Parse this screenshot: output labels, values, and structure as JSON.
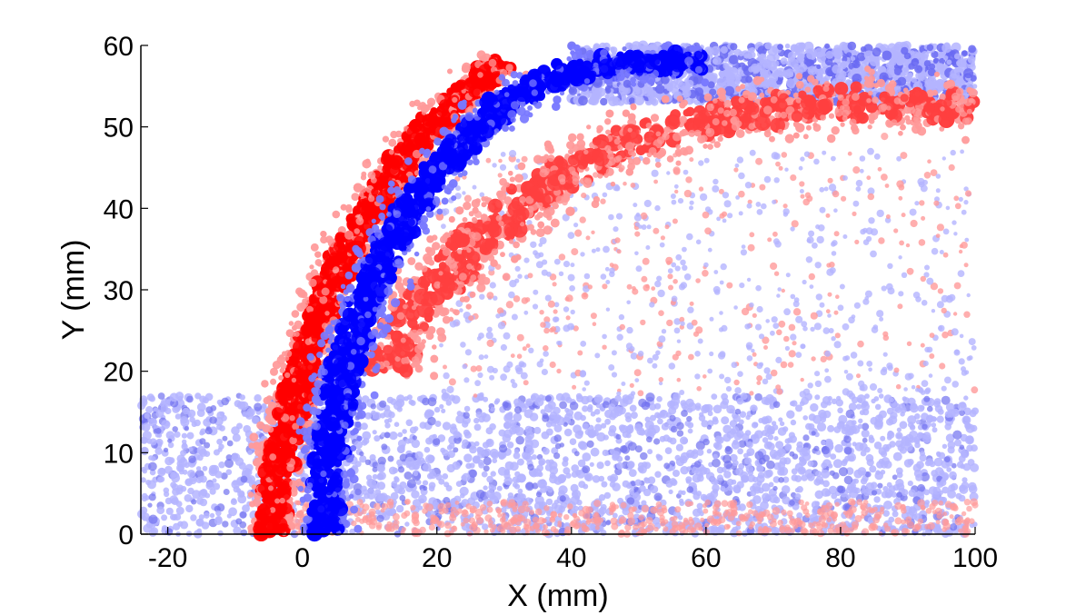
{
  "chart_data": {
    "type": "scatter",
    "title": "",
    "xlabel": "X (mm)",
    "ylabel": "Y (mm)",
    "xlim": [
      -24,
      100
    ],
    "ylim": [
      0,
      60
    ],
    "x_ticks": [
      -20,
      0,
      20,
      40,
      60,
      80,
      100
    ],
    "y_ticks": [
      0,
      10,
      20,
      30,
      40,
      50,
      60
    ],
    "grid": false,
    "legend": "none",
    "colors": {
      "red_strong": "#ff0000",
      "red_light": "#ff9a9a",
      "blue_strong": "#0000ff",
      "blue_light": "#b4b4ff"
    },
    "series": [
      {
        "color": "red",
        "shape": "curved band",
        "x": [
          -5,
          -3,
          0,
          3,
          6,
          10,
          15,
          20,
          25,
          30
        ],
        "y": [
          0,
          10,
          20,
          28,
          34,
          40,
          46,
          51,
          55,
          58
        ]
      },
      {
        "color": "blue",
        "shape": "curved band",
        "x": [
          3,
          4,
          6,
          9,
          12,
          16,
          20,
          25,
          30,
          35,
          40,
          50,
          60
        ],
        "y": [
          0,
          10,
          20,
          28,
          34,
          40,
          45,
          49,
          53,
          55,
          57,
          58,
          58
        ]
      },
      {
        "color": "red",
        "shape": "outer curved band",
        "x": [
          12,
          15,
          20,
          26,
          32,
          38,
          45,
          52,
          60,
          70,
          80,
          90,
          100
        ],
        "y": [
          20,
          25,
          30,
          36,
          40,
          44,
          47,
          49,
          51,
          52,
          53,
          53,
          52
        ]
      },
      {
        "color": "blue",
        "shape": "scattered low-density region",
        "x": [
          -24,
          100
        ],
        "y": [
          0,
          17
        ]
      },
      {
        "color": "blue",
        "shape": "scattered top band",
        "x": [
          40,
          100
        ],
        "y": [
          53,
          60
        ]
      }
    ]
  }
}
